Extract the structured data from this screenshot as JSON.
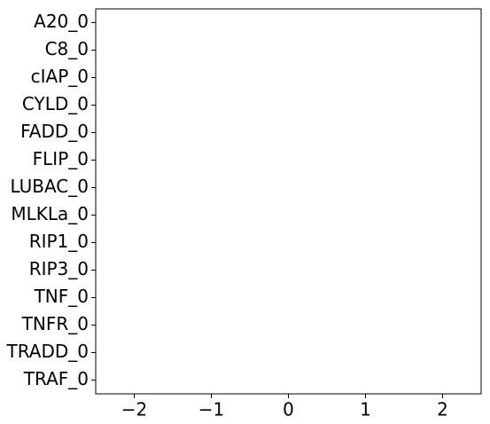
{
  "chart_data": {
    "type": "hbar",
    "categories": [
      "A20_0",
      "C8_0",
      "cIAP_0",
      "CYLD_0",
      "FADD_0",
      "FLIP_0",
      "LUBAC_0",
      "MLKLa_0",
      "RIP1_0",
      "RIP3_0",
      "TNF_0",
      "TNFR_0",
      "TRADD_0",
      "TRAF_0"
    ],
    "values": [
      0,
      0,
      0,
      0,
      0,
      0,
      0,
      0,
      0,
      0,
      0,
      0,
      0,
      0
    ],
    "color": "#1f77b4",
    "xlim": [
      -2.5,
      2.5
    ],
    "xticks": [
      {
        "value": -2,
        "label": "−2"
      },
      {
        "value": -1,
        "label": "−1"
      },
      0,
      1,
      2
    ],
    "grid": false
  }
}
